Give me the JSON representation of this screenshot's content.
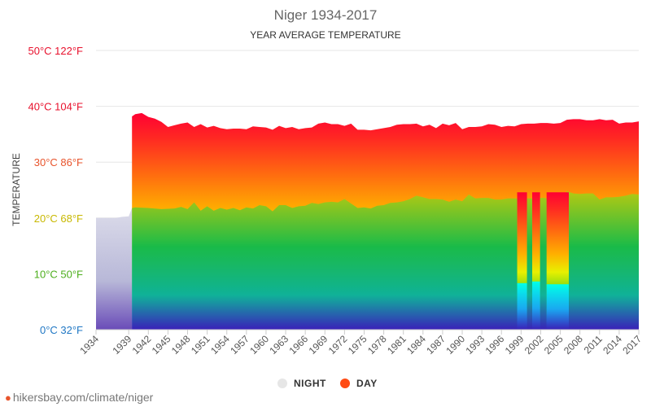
{
  "chart_data": {
    "type": "area",
    "title": "Niger 1934-2017",
    "subtitle": "YEAR AVERAGE TEMPERATURE",
    "ylabel": "TEMPERATURE",
    "ylim": [
      0,
      50
    ],
    "y_ticks": [
      {
        "value": 0,
        "label": "0°C 32°F",
        "color": "#1f77c4"
      },
      {
        "value": 10,
        "label": "10°C 50°F",
        "color": "#4cae1c"
      },
      {
        "value": 20,
        "label": "20°C 68°F",
        "color": "#c8b800"
      },
      {
        "value": 30,
        "label": "30°C 86°F",
        "color": "#e8542c"
      },
      {
        "value": 40,
        "label": "40°C 104°F",
        "color": "#e8102c"
      },
      {
        "value": 50,
        "label": "50°C 122°F",
        "color": "#e8102c"
      }
    ],
    "x_range": [
      1934,
      2017
    ],
    "x_ticks": [
      "1934",
      "1939",
      "1942",
      "1945",
      "1948",
      "1951",
      "1954",
      "1957",
      "1960",
      "1963",
      "1966",
      "1969",
      "1972",
      "1975",
      "1978",
      "1981",
      "1984",
      "1987",
      "1990",
      "1993",
      "1996",
      "1999",
      "2002",
      "2005",
      "2008",
      "2011",
      "2014",
      "2017"
    ],
    "legend": [
      "NIGHT",
      "DAY"
    ],
    "legend_colors": {
      "NIGHT": "#e6e6e6",
      "DAY": "#ff4b14"
    },
    "series": [
      {
        "name": "NIGHT",
        "x": [
          1934,
          1937,
          1938,
          1939,
          1939.5,
          1940,
          1942,
          1944,
          1946,
          1947,
          1948,
          1949,
          1950,
          1951,
          1952,
          1953,
          1954,
          1955,
          1956,
          1957,
          1958,
          1959,
          1960,
          1961,
          1962,
          1963,
          1964,
          1965,
          1966,
          1967,
          1968,
          1969,
          1970,
          1971,
          1972,
          1973,
          1974,
          1975,
          1976,
          1977,
          1978,
          1979,
          1980,
          1981,
          1982,
          1983,
          1984,
          1985,
          1986,
          1987,
          1988,
          1989,
          1990,
          1991,
          1992,
          1993,
          1994,
          1995,
          1996,
          1997,
          1998,
          1998.4,
          1999,
          1999.6,
          2000,
          2000.5,
          2001,
          2001.6,
          2002,
          2002.5,
          2003,
          2004,
          2005,
          2006,
          2006.5,
          2007,
          2008,
          2009,
          2010,
          2011,
          2012,
          2013,
          2014,
          2015,
          2016,
          2017
        ],
        "y": [
          20.0,
          20.0,
          20.2,
          20.3,
          21.8,
          21.9,
          21.8,
          21.6,
          21.7,
          22.0,
          21.6,
          22.8,
          21.3,
          22.1,
          21.3,
          21.8,
          21.5,
          21.8,
          21.4,
          21.9,
          21.7,
          22.3,
          22.1,
          21.2,
          22.3,
          22.3,
          21.8,
          22.1,
          22.2,
          22.7,
          22.5,
          22.8,
          22.9,
          22.8,
          23.4,
          22.6,
          21.8,
          21.9,
          21.7,
          22.2,
          22.3,
          22.7,
          22.8,
          23.0,
          23.4,
          24.0,
          23.7,
          23.4,
          23.4,
          23.3,
          22.9,
          23.3,
          23.0,
          24.2,
          23.5,
          23.6,
          23.6,
          23.3,
          23.3,
          23.5,
          23.5,
          23.5,
          23.6,
          23.6,
          23.5,
          23.5,
          23.5,
          23.6,
          23.6,
          23.6,
          23.5,
          23.5,
          23.6,
          24.8,
          24.6,
          24.4,
          24.3,
          24.4,
          24.4,
          23.3,
          23.7,
          23.7,
          23.8,
          24.0,
          24.3,
          24.2
        ],
        "gaps": [
          [
            1998.4,
            1999.9
          ],
          [
            2000.7,
            2001.9
          ],
          [
            2002.9,
            2006.3
          ]
        ],
        "gap_y": [
          2.5,
          2.8,
          2.3
        ]
      },
      {
        "name": "DAY",
        "x": [
          1939.5,
          1940,
          1941,
          1942,
          1943,
          1944,
          1945,
          1946,
          1947,
          1948,
          1949,
          1950,
          1951,
          1952,
          1953,
          1954,
          1955,
          1956,
          1957,
          1958,
          1959,
          1960,
          1961,
          1962,
          1963,
          1964,
          1965,
          1966,
          1967,
          1968,
          1969,
          1970,
          1971,
          1972,
          1973,
          1974,
          1975,
          1976,
          1977,
          1978,
          1979,
          1980,
          1981,
          1982,
          1983,
          1984,
          1985,
          1986,
          1987,
          1988,
          1989,
          1990,
          1991,
          1992,
          1993,
          1994,
          1995,
          1996,
          1997,
          1998,
          1999,
          2000,
          2001,
          2002,
          2003,
          2004,
          2005,
          2006,
          2007,
          2008,
          2009,
          2010,
          2011,
          2012,
          2013,
          2014,
          2015,
          2016,
          2017
        ],
        "y": [
          38.2,
          38.6,
          38.8,
          38.1,
          37.8,
          37.2,
          36.3,
          36.6,
          36.9,
          37.1,
          36.3,
          36.8,
          36.2,
          36.5,
          36.1,
          35.9,
          36.0,
          36.0,
          35.9,
          36.4,
          36.3,
          36.2,
          35.8,
          36.5,
          36.1,
          36.3,
          35.9,
          36.1,
          36.2,
          36.9,
          37.1,
          36.8,
          36.8,
          36.5,
          36.9,
          35.8,
          35.8,
          35.7,
          35.9,
          36.1,
          36.3,
          36.7,
          36.8,
          36.8,
          36.9,
          36.4,
          36.7,
          36.1,
          36.9,
          36.6,
          37.0,
          35.9,
          36.3,
          36.3,
          36.4,
          36.8,
          36.7,
          36.3,
          36.5,
          36.4,
          36.8,
          36.9,
          36.9,
          37.0,
          37.0,
          36.9,
          37.0,
          37.6,
          37.7,
          37.7,
          37.5,
          37.5,
          37.7,
          37.5,
          37.6,
          36.9,
          37.1,
          37.1,
          37.3
        ]
      }
    ]
  },
  "watermark": "hikersbay.com/climate/niger"
}
